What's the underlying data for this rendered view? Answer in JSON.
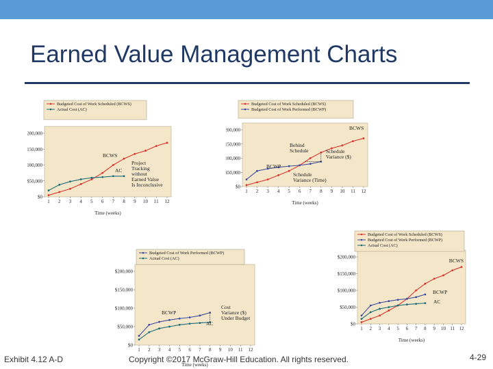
{
  "slide": {
    "title": "Earned Value Management Charts",
    "footer_left": "Exhibit 4.12 A-D",
    "footer_center": "Copyright ©2017 McGraw-Hill Education. All rights reserved.",
    "page_number": "4-29"
  },
  "colors": {
    "topbar": "#5b9bd5",
    "title": "#1f3864",
    "bcws": "#d9342b",
    "ac": "#1a6b78",
    "bcwp": "#3b4aa0",
    "panel_bg": "#f4e7c9"
  },
  "chart_data": [
    {
      "type": "line",
      "xlabel": "Time (weeks)",
      "x": [
        1,
        2,
        3,
        4,
        5,
        6,
        7,
        8,
        9,
        10,
        11,
        12
      ],
      "ytick_labels": [
        "$0",
        "$50,000",
        "$100,000",
        "$150,000",
        "$200,000"
      ],
      "ylim": [
        0,
        200000
      ],
      "legend": [
        "Budgeted Cost of Work Scheduled (BCWS)",
        "Actual Cost (AC)"
      ],
      "series": [
        {
          "name": "Budgeted Cost of Work Scheduled (BCWS)",
          "color": "#d9342b",
          "x": [
            1,
            2,
            3,
            4,
            5,
            6,
            7,
            8,
            9,
            10,
            11,
            12
          ],
          "values": [
            5000,
            15000,
            25000,
            40000,
            55000,
            75000,
            100000,
            120000,
            135000,
            145000,
            160000,
            170000
          ]
        },
        {
          "name": "Actual Cost (AC)",
          "color": "#1a6b78",
          "x": [
            1,
            2,
            3,
            4,
            5,
            6,
            7,
            8
          ],
          "values": [
            20000,
            38000,
            48000,
            55000,
            60000,
            62000,
            65000,
            65000
          ]
        }
      ],
      "annotations": [
        {
          "text": "BCWS"
        },
        {
          "text": "AC"
        },
        {
          "text": "Project"
        },
        {
          "text": "Tracking"
        },
        {
          "text": "without"
        },
        {
          "text": "Earned Value"
        },
        {
          "text": "Is Inconclusive"
        }
      ]
    },
    {
      "type": "line",
      "xlabel": "Time (weeks)",
      "x": [
        1,
        2,
        3,
        4,
        5,
        6,
        7,
        8,
        9,
        10,
        11,
        12
      ],
      "ytick_labels": [
        "$0",
        "$50,000",
        "$100,000",
        "$150,000",
        "$200,000"
      ],
      "ylim": [
        0,
        200000
      ],
      "legend": [
        "Budgeted Cost of Work Scheduled (BCWS)",
        "Budgeted Cost of Work Performed (BCWP)"
      ],
      "series": [
        {
          "name": "Budgeted Cost of Work Scheduled (BCWS)",
          "color": "#d9342b",
          "x": [
            1,
            2,
            3,
            4,
            5,
            6,
            7,
            8,
            9,
            10,
            11,
            12
          ],
          "values": [
            5000,
            15000,
            25000,
            40000,
            55000,
            75000,
            100000,
            120000,
            135000,
            145000,
            160000,
            170000
          ]
        },
        {
          "name": "Budgeted Cost of Work Performed (BCWP)",
          "color": "#3b4aa0",
          "x": [
            1,
            2,
            3,
            4,
            5,
            6,
            7,
            8
          ],
          "values": [
            25000,
            55000,
            63000,
            68000,
            72000,
            75000,
            80000,
            88000
          ]
        }
      ],
      "annotations": [
        {
          "text": "BCWS"
        },
        {
          "text": "BCWP"
        },
        {
          "text": "Behind"
        },
        {
          "text": "Schedule"
        },
        {
          "text": "Schedule"
        },
        {
          "text": "Variance ($)"
        },
        {
          "text": "Schedule"
        },
        {
          "text": "Variance (Time)"
        }
      ]
    },
    {
      "type": "line",
      "xlabel": "Time (weeks)",
      "x": [
        1,
        2,
        3,
        4,
        5,
        6,
        7,
        8,
        9,
        10,
        11,
        12
      ],
      "ytick_labels": [
        "$0",
        "$50,000",
        "$100,000",
        "$150,000",
        "$200,000"
      ],
      "ylim": [
        0,
        200000
      ],
      "legend": [
        "Budgeted Cost of Work Performed (BCWP)",
        "Actual Cost (AC)"
      ],
      "series": [
        {
          "name": "Budgeted Cost of Work Performed (BCWP)",
          "color": "#3b4aa0",
          "x": [
            1,
            2,
            3,
            4,
            5,
            6,
            7,
            8
          ],
          "values": [
            25000,
            55000,
            63000,
            68000,
            72000,
            75000,
            80000,
            88000
          ]
        },
        {
          "name": "Actual Cost (AC)",
          "color": "#1a6b78",
          "x": [
            1,
            2,
            3,
            4,
            5,
            6,
            7,
            8
          ],
          "values": [
            15000,
            35000,
            45000,
            50000,
            55000,
            58000,
            60000,
            62000
          ]
        }
      ],
      "annotations": [
        {
          "text": "BCWP"
        },
        {
          "text": "AC"
        },
        {
          "text": "Cost"
        },
        {
          "text": "Variance ($)"
        },
        {
          "text": "Under Budget"
        }
      ]
    },
    {
      "type": "line",
      "xlabel": "Time (weeks)",
      "x": [
        1,
        2,
        3,
        4,
        5,
        6,
        7,
        8,
        9,
        10,
        11,
        12
      ],
      "ytick_labels": [
        "$0",
        "$50,000",
        "$100,000",
        "$150,000",
        "$200,000"
      ],
      "ylim": [
        0,
        200000
      ],
      "legend": [
        "Budgeted Cost of Work Scheduled (BCWS)",
        "Budgeted Cost of Work Performed (BCWP)",
        "Actual Cost (AC)"
      ],
      "series": [
        {
          "name": "Budgeted Cost of Work Scheduled (BCWS)",
          "color": "#d9342b",
          "x": [
            1,
            2,
            3,
            4,
            5,
            6,
            7,
            8,
            9,
            10,
            11,
            12
          ],
          "values": [
            5000,
            15000,
            25000,
            40000,
            55000,
            75000,
            100000,
            120000,
            135000,
            145000,
            160000,
            170000
          ]
        },
        {
          "name": "Budgeted Cost of Work Performed (BCWP)",
          "color": "#3b4aa0",
          "x": [
            1,
            2,
            3,
            4,
            5,
            6,
            7,
            8
          ],
          "values": [
            25000,
            55000,
            63000,
            68000,
            72000,
            75000,
            80000,
            88000
          ]
        },
        {
          "name": "Actual Cost (AC)",
          "color": "#1a6b78",
          "x": [
            1,
            2,
            3,
            4,
            5,
            6,
            7,
            8
          ],
          "values": [
            15000,
            35000,
            45000,
            50000,
            55000,
            58000,
            60000,
            62000
          ]
        }
      ],
      "annotations": [
        {
          "text": "BCWS"
        },
        {
          "text": "BCWP"
        },
        {
          "text": "AC"
        }
      ]
    }
  ]
}
